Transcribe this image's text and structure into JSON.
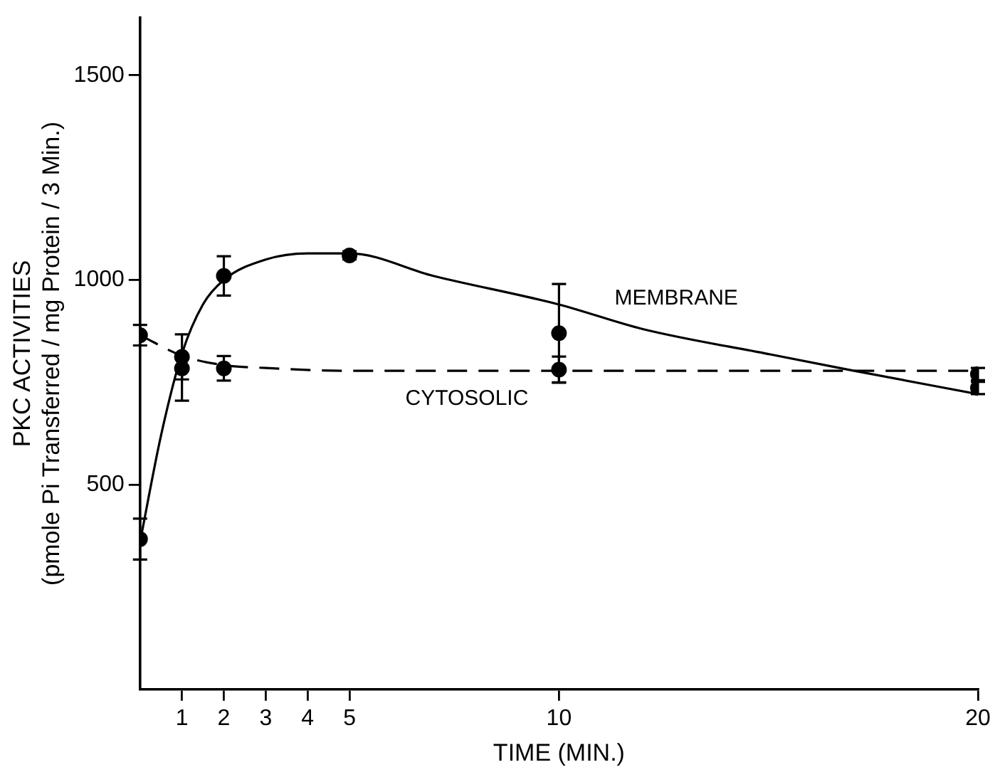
{
  "chart_data": {
    "type": "scatter",
    "xlabel": "TIME (MIN.)",
    "ylabel": "PKC ACTIVITIES\n(pmole Pi Transferred / mg Protein / 3 Min.)",
    "xlim": [
      0,
      20
    ],
    "xticks": [
      1,
      2,
      3,
      4,
      5,
      10,
      20
    ],
    "ylim": [
      0,
      1640
    ],
    "yticks": [
      500,
      1000,
      1500
    ],
    "grid": false,
    "legend": false,
    "series": [
      {
        "type": "line",
        "name": "MEMBRANE",
        "color": "#000000",
        "line_style": "solid",
        "marker": "none",
        "x": [
          0,
          0.5,
          1,
          1.5,
          2,
          3,
          4,
          5,
          7,
          10,
          12,
          15,
          17,
          20
        ],
        "values": [
          360,
          620,
          820,
          940,
          1000,
          1050,
          1065,
          1065,
          1010,
          940,
          880,
          819,
          779,
          721
        ]
      },
      {
        "type": "line",
        "name": "CYTOSOLIC",
        "color": "#000000",
        "line_style": "dashed",
        "marker": "none",
        "x": [
          0,
          1,
          2,
          3,
          5,
          10,
          15,
          20
        ],
        "values": [
          865,
          815,
          792,
          785,
          778,
          778,
          778,
          778
        ]
      },
      {
        "color": "#000000",
        "marker": "circle",
        "x": [
          0,
          1,
          2,
          5,
          10,
          20
        ],
        "values": [
          367,
          784,
          1010,
          1060,
          870,
          736
        ],
        "errors": [
          50,
          [
            705,
            784
          ],
          48,
          10,
          120,
          15
        ]
      },
      {
        "color": "#000000",
        "marker": "circle",
        "x": [
          0,
          1,
          2,
          10,
          20
        ],
        "values": [
          865,
          812,
          784,
          781,
          770
        ],
        "errors": [
          25,
          55,
          30,
          32,
          15
        ]
      }
    ]
  }
}
